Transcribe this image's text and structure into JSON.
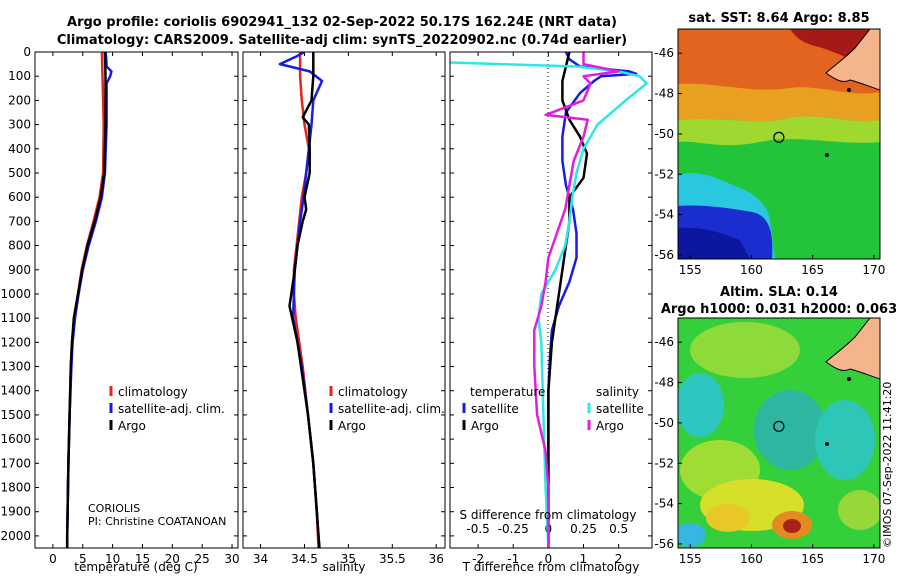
{
  "header": {
    "line1": "Argo profile: coriolis 6902941_132 02-Sep-2022 50.17S 162.24E (NRT data)",
    "line2": "Climatology: CARS2009. Satellite-adj clim: synTS_20220902.nc (0.74d earlier)"
  },
  "credit": {
    "name": "CORIOLIS",
    "pi": "PI: Christine COATANOAN"
  },
  "watermark": "©IMOS 07-Sep-2022 11:41:20",
  "colors": {
    "climatology": "#e8231a",
    "satellite": "#1a1ae6",
    "argo": "#000000",
    "sat_temp_diff": "#2ee6e6",
    "sal_diff": "#e01ee0"
  },
  "chart_data": [
    {
      "type": "line",
      "id": "temperature",
      "xlabel": "temperature (deg C)",
      "ylabel": "",
      "xlim": [
        -3,
        31
      ],
      "ylim": [
        2050,
        0
      ],
      "xticks": [
        "0",
        "5",
        "10",
        "15",
        "20",
        "25",
        "30"
      ],
      "yticks": [
        "0",
        "100",
        "200",
        "300",
        "400",
        "500",
        "600",
        "700",
        "800",
        "900",
        "1000",
        "1100",
        "1200",
        "1300",
        "1400",
        "1500",
        "1600",
        "1700",
        "1800",
        "1900",
        "2000"
      ],
      "legend": [
        "climatology",
        "satellite-adj. clim.",
        "Argo"
      ],
      "series": [
        {
          "name": "climatology",
          "depth": [
            0,
            100,
            300,
            500,
            600,
            700,
            800,
            900,
            1000,
            1100,
            1200,
            1300,
            1500,
            1700,
            2000,
            2050
          ],
          "values": [
            8.2,
            8.3,
            8.5,
            8.4,
            7.8,
            6.8,
            5.7,
            4.8,
            4.2,
            3.6,
            3.2,
            3.0,
            2.8,
            2.6,
            2.4,
            2.4
          ]
        },
        {
          "name": "satellite-adj. clim.",
          "depth": [
            0,
            20,
            60,
            80,
            100,
            130,
            300,
            500,
            600,
            700,
            800,
            900,
            1000,
            1100,
            1200,
            1300,
            1500,
            1700,
            2000,
            2050
          ],
          "values": [
            8.8,
            8.9,
            9.0,
            9.8,
            9.6,
            9.0,
            9.0,
            8.7,
            8.2,
            7.2,
            6.0,
            5.0,
            4.3,
            3.7,
            3.3,
            3.1,
            2.8,
            2.6,
            2.4,
            2.4
          ]
        },
        {
          "name": "Argo",
          "depth": [
            0,
            100,
            300,
            500,
            600,
            700,
            800,
            900,
            1000,
            1100,
            1200,
            1300,
            1500,
            1700,
            2000,
            2050
          ],
          "values": [
            8.7,
            8.8,
            8.8,
            8.6,
            8.0,
            7.0,
            5.8,
            4.9,
            4.2,
            3.5,
            3.2,
            3.0,
            2.8,
            2.6,
            2.4,
            2.4
          ]
        }
      ]
    },
    {
      "type": "line",
      "id": "salinity",
      "xlabel": "salinity",
      "xlim": [
        33.8,
        36.1
      ],
      "ylim": [
        2050,
        0
      ],
      "xticks": [
        "34",
        "34.5",
        "35",
        "35.5",
        "36"
      ],
      "legend": [
        "climatology",
        "satellite-adj. clim.",
        "Argo"
      ],
      "series": [
        {
          "name": "climatology",
          "depth": [
            0,
            100,
            200,
            300,
            400,
            500,
            600,
            700,
            800,
            900,
            1000,
            1100,
            1200,
            1300,
            1500,
            1700,
            1900,
            2050
          ],
          "values": [
            34.45,
            34.45,
            34.47,
            34.5,
            34.55,
            34.52,
            34.47,
            34.44,
            34.41,
            34.38,
            34.38,
            34.4,
            34.44,
            34.48,
            34.54,
            34.6,
            34.64,
            34.66
          ]
        },
        {
          "name": "satellite-adj. clim.",
          "depth": [
            0,
            20,
            50,
            80,
            120,
            200,
            300,
            400,
            500,
            600,
            700,
            800,
            900,
            1000,
            1100,
            1200,
            1300,
            1500,
            1700,
            1900,
            2050
          ],
          "values": [
            34.5,
            34.4,
            34.22,
            34.56,
            34.7,
            34.6,
            34.58,
            34.55,
            34.52,
            34.49,
            34.45,
            34.42,
            34.39,
            34.38,
            34.37,
            34.42,
            34.47,
            34.54,
            34.6,
            34.64,
            34.67
          ]
        },
        {
          "name": "Argo",
          "depth": [
            0,
            100,
            200,
            270,
            300,
            400,
            500,
            600,
            650,
            700,
            800,
            900,
            1000,
            1050,
            1100,
            1200,
            1300,
            1400,
            1500,
            1700,
            1900,
            2050
          ],
          "values": [
            34.6,
            34.6,
            34.58,
            34.48,
            34.55,
            34.56,
            34.56,
            34.5,
            34.52,
            34.48,
            34.42,
            34.39,
            34.35,
            34.33,
            34.36,
            34.42,
            34.46,
            34.5,
            34.54,
            34.6,
            34.64,
            34.67
          ]
        }
      ]
    },
    {
      "type": "line",
      "id": "difference",
      "xlabel": "T difference from climatology",
      "xlabel2": "S difference from climatology",
      "xlim": [
        -2.8,
        2.95
      ],
      "ylim": [
        2050,
        0
      ],
      "xticks": [
        "-2",
        "-1",
        "0",
        "1",
        "2"
      ],
      "xticks2": [
        "-0.5",
        "-0.25",
        "0",
        "0.25",
        "0.5"
      ],
      "legend_headers": [
        "temperature",
        "salinity"
      ],
      "legend_left": [
        "satellite",
        "Argo"
      ],
      "legend_right": [
        "satellite",
        "Argo"
      ],
      "series": [
        {
          "name": "temperature satellite",
          "depth": [
            0,
            30,
            60,
            80,
            90,
            100,
            120,
            170,
            250,
            350,
            450,
            550,
            650,
            750,
            850,
            950,
            1050,
            1150,
            1250,
            1400,
            1600,
            1800,
            2050
          ],
          "values": [
            0.5,
            0.6,
            0.9,
            2.3,
            2.5,
            1.5,
            1.3,
            0.9,
            0.5,
            0.4,
            0.4,
            0.5,
            0.7,
            0.8,
            0.8,
            0.6,
            0.3,
            0.1,
            0.05,
            0.0,
            0.0,
            0.0,
            0.0
          ]
        },
        {
          "name": "temperature Argo",
          "depth": [
            0,
            60,
            120,
            200,
            280,
            350,
            420,
            520,
            600,
            700,
            800,
            900,
            1000,
            1100,
            1200,
            1400,
            1600,
            1800,
            2050
          ],
          "values": [
            0.6,
            0.5,
            0.4,
            0.4,
            0.6,
            0.9,
            1.1,
            1.0,
            0.6,
            0.6,
            0.5,
            0.4,
            0.3,
            0.2,
            0.1,
            0.0,
            0.0,
            0.0,
            0.0
          ]
        },
        {
          "name": "salinity satellite",
          "depth": [
            0,
            40,
            60,
            80,
            100,
            130,
            200,
            300,
            400,
            500,
            600,
            700,
            800,
            900,
            1000,
            1100,
            1200,
            1400,
            1600,
            1800,
            2050
          ],
          "values": [
            -0.92,
            -0.87,
            0.2,
            0.5,
            0.65,
            0.7,
            0.55,
            0.35,
            0.25,
            0.2,
            0.17,
            0.15,
            0.12,
            0.05,
            -0.05,
            -0.07,
            -0.05,
            -0.04,
            -0.03,
            -0.02,
            0.0
          ]
        },
        {
          "name": "salinity Argo",
          "depth": [
            0,
            50,
            80,
            100,
            130,
            200,
            260,
            280,
            350,
            450,
            550,
            650,
            750,
            850,
            950,
            1050,
            1150,
            1300,
            1500,
            1650,
            1800,
            2050
          ],
          "values": [
            0.25,
            0.25,
            0.5,
            0.25,
            0.3,
            0.25,
            -0.02,
            0.28,
            0.25,
            0.18,
            0.15,
            0.12,
            0.06,
            0.0,
            -0.02,
            -0.05,
            -0.1,
            -0.1,
            -0.08,
            -0.02,
            0.0,
            0.0
          ]
        }
      ]
    },
    {
      "type": "heatmap",
      "id": "sst-map",
      "title": "sat. SST: 8.64 Argo: 8.85",
      "xlim": [
        154,
        170.5
      ],
      "ylim": [
        -56.2,
        -44.8
      ],
      "xticks": [
        "155",
        "160",
        "165",
        "170"
      ],
      "yticks": [
        "-46",
        "-48",
        "-50",
        "-52",
        "-54",
        "-56"
      ],
      "argo_position": {
        "lon": 162.24,
        "lat": -50.17
      }
    },
    {
      "type": "heatmap",
      "id": "sla-map",
      "title": "Altim. SLA: 0.14",
      "subtitle": "Argo h1000: 0.031 h2000: 0.063",
      "xlim": [
        154,
        170.5
      ],
      "ylim": [
        -56.2,
        -44.8
      ],
      "xticks": [
        "155",
        "160",
        "165",
        "170"
      ],
      "yticks": [
        "-46",
        "-48",
        "-50",
        "-52",
        "-54",
        "-56"
      ],
      "argo_position": {
        "lon": 162.24,
        "lat": -50.17
      }
    }
  ]
}
